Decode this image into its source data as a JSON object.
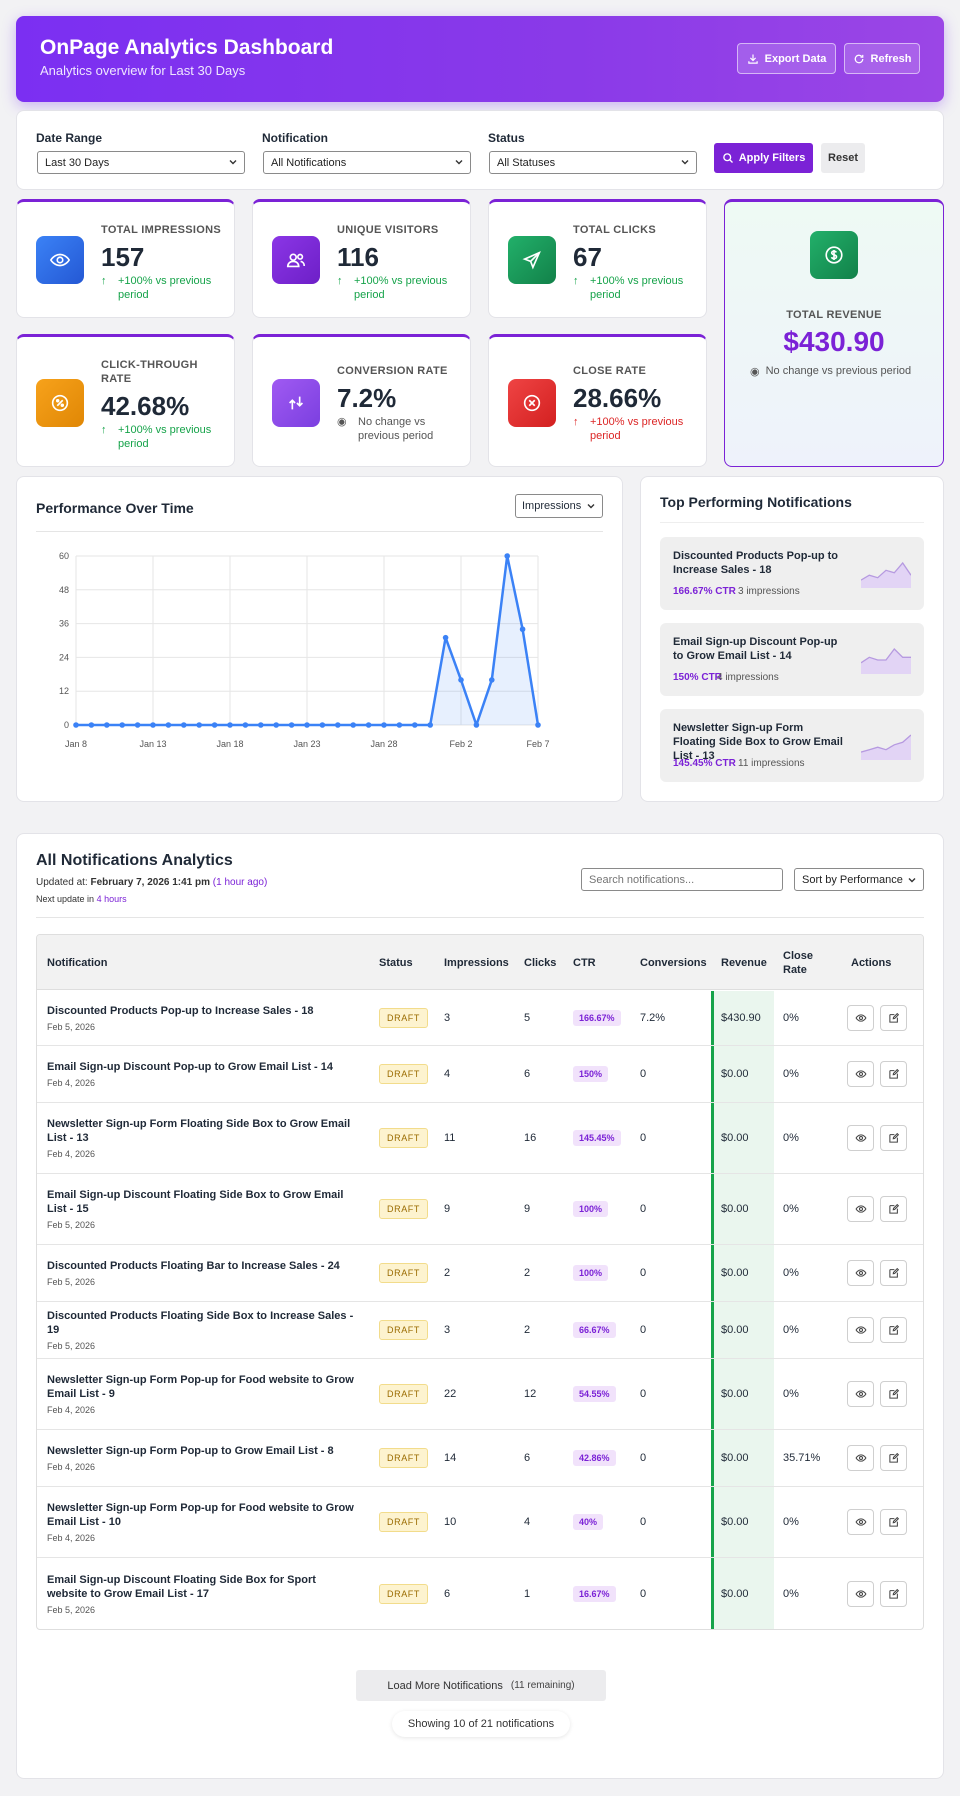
{
  "header": {
    "title": "OnPage Analytics Dashboard",
    "subtitle": "Analytics overview for Last 30 Days",
    "export_label": "Export Data",
    "refresh_label": "Refresh",
    "gradient_color": "#7b2ff2"
  },
  "filters": {
    "date_range_label": "Date Range",
    "date_range_value": "Last 30 Days",
    "notification_label": "Notification",
    "notification_value": "All Notifications",
    "status_label": "Status",
    "status_value": "All Statuses",
    "apply_label": "Apply Filters",
    "reset_label": "Reset"
  },
  "stats": {
    "impressions": {
      "label": "TOTAL IMPRESSIONS",
      "value": "157",
      "change": "+100% vs previous period",
      "icon": "eye-icon",
      "color": "#2f6fdf"
    },
    "visitors": {
      "label": "UNIQUE VISITORS",
      "value": "116",
      "change": "+100% vs previous period",
      "icon": "users-icon",
      "color": "#7b22d6"
    },
    "clicks": {
      "label": "TOTAL CLICKS",
      "value": "67",
      "change": "+100% vs previous period",
      "icon": "send-icon",
      "color": "#16a34a"
    },
    "ctr": {
      "label": "CLICK-THROUGH RATE",
      "value": "42.68%",
      "change": "+100% vs previous period",
      "icon": "percent-icon",
      "color": "#f59e0b"
    },
    "conversion": {
      "label": "CONVERSION RATE",
      "value": "7.2%",
      "change": "No change vs previous period",
      "icon": "exchange-icon",
      "color": "#8b5cf6"
    },
    "close": {
      "label": "CLOSE RATE",
      "value": "28.66%",
      "change": "+100% vs previous period",
      "icon": "x-circle-icon",
      "color": "#dc2626"
    },
    "revenue": {
      "label": "TOTAL REVENUE",
      "value": "$430.90",
      "change": "No change vs previous period",
      "icon": "dollar-icon",
      "color": "#16a34a"
    }
  },
  "chart": {
    "title": "Performance Over Time",
    "metric_value": "Impressions"
  },
  "chart_data": {
    "type": "line",
    "x": [
      "Jan 8",
      "Jan 9",
      "Jan 10",
      "Jan 11",
      "Jan 12",
      "Jan 13",
      "Jan 14",
      "Jan 15",
      "Jan 16",
      "Jan 17",
      "Jan 18",
      "Jan 19",
      "Jan 20",
      "Jan 21",
      "Jan 22",
      "Jan 23",
      "Jan 24",
      "Jan 25",
      "Jan 26",
      "Jan 27",
      "Jan 28",
      "Jan 29",
      "Jan 30",
      "Jan 31",
      "Feb 1",
      "Feb 2",
      "Feb 3",
      "Feb 4",
      "Feb 5",
      "Feb 6",
      "Feb 7"
    ],
    "x_tick_labels": [
      "Jan 8",
      "Jan 13",
      "Jan 18",
      "Jan 23",
      "Jan 28",
      "Feb 2",
      "Feb 7"
    ],
    "series": [
      {
        "values": [
          0,
          0,
          0,
          0,
          0,
          0,
          0,
          0,
          0,
          0,
          0,
          0,
          0,
          0,
          0,
          0,
          0,
          0,
          0,
          0,
          0,
          0,
          0,
          0,
          31,
          16,
          0,
          16,
          60,
          34,
          0
        ]
      }
    ],
    "y_ticks": [
      0,
      12,
      24,
      36,
      48,
      60
    ],
    "ylim": [
      0,
      60
    ],
    "grid": true,
    "color": "#3b82f6"
  },
  "top": {
    "title": "Top Performing Notifications",
    "items": [
      {
        "name": "Discounted Products Pop-up to Increase Sales - 18",
        "ctr": "166.67% CTR",
        "impressions": "3 impressions",
        "spark": [
          2,
          4,
          3,
          6,
          5,
          9,
          4
        ]
      },
      {
        "name": "Email Sign-up Discount Pop-up to Grow Email List - 14",
        "ctr": "150% CTR",
        "impressions": "4 impressions",
        "spark": [
          3,
          5,
          4,
          4,
          8,
          5,
          5
        ]
      },
      {
        "name": "Newsletter Sign-up Form Floating Side Box to Grow Email List - 13",
        "ctr": "145.45% CTR",
        "impressions": "11 impressions",
        "spark": [
          2,
          3,
          4,
          3,
          5,
          6,
          9
        ]
      }
    ]
  },
  "table": {
    "title": "All Notifications Analytics",
    "updated_prefix": "Updated at:",
    "updated_value": "February 7, 2026 1:41 pm",
    "updated_ago": "(1 hour ago)",
    "next_prefix": "Next update in",
    "next_value": "4 hours",
    "search_placeholder": "Search notifications...",
    "sort_value": "Sort by Performance",
    "columns": [
      "Notification",
      "Status",
      "Impressions",
      "Clicks",
      "CTR",
      "Conversions",
      "Revenue",
      "Close Rate",
      "Actions"
    ],
    "rows": [
      {
        "name": "Discounted Products Pop-up to Increase Sales - 18",
        "date": "Feb 5, 2026",
        "status": "DRAFT",
        "impressions": "3",
        "clicks": "5",
        "ctr": "166.67%",
        "conversions": "7.2%",
        "revenue": "$430.90",
        "close": "0%"
      },
      {
        "name": "Email Sign-up Discount Pop-up to Grow Email List - 14",
        "date": "Feb 4, 2026",
        "status": "DRAFT",
        "impressions": "4",
        "clicks": "6",
        "ctr": "150%",
        "conversions": "0",
        "revenue": "$0.00",
        "close": "0%"
      },
      {
        "name": "Newsletter Sign-up Form Floating Side Box to Grow Email List - 13",
        "date": "Feb 4, 2026",
        "status": "DRAFT",
        "impressions": "11",
        "clicks": "16",
        "ctr": "145.45%",
        "conversions": "0",
        "revenue": "$0.00",
        "close": "0%"
      },
      {
        "name": "Email Sign-up Discount Floating Side Box to Grow Email List - 15",
        "date": "Feb 5, 2026",
        "status": "DRAFT",
        "impressions": "9",
        "clicks": "9",
        "ctr": "100%",
        "conversions": "0",
        "revenue": "$0.00",
        "close": "0%"
      },
      {
        "name": "Discounted Products Floating Bar to Increase Sales - 24",
        "date": "Feb 5, 2026",
        "status": "DRAFT",
        "impressions": "2",
        "clicks": "2",
        "ctr": "100%",
        "conversions": "0",
        "revenue": "$0.00",
        "close": "0%"
      },
      {
        "name": "Discounted Products Floating Side Box to Increase Sales - 19",
        "date": "Feb 5, 2026",
        "status": "DRAFT",
        "impressions": "3",
        "clicks": "2",
        "ctr": "66.67%",
        "conversions": "0",
        "revenue": "$0.00",
        "close": "0%"
      },
      {
        "name": "Newsletter Sign-up Form Pop-up for Food website to Grow Email List - 9",
        "date": "Feb 4, 2026",
        "status": "DRAFT",
        "impressions": "22",
        "clicks": "12",
        "ctr": "54.55%",
        "conversions": "0",
        "revenue": "$0.00",
        "close": "0%"
      },
      {
        "name": "Newsletter Sign-up Form Pop-up to Grow Email List - 8",
        "date": "Feb 4, 2026",
        "status": "DRAFT",
        "impressions": "14",
        "clicks": "6",
        "ctr": "42.86%",
        "conversions": "0",
        "revenue": "$0.00",
        "close": "35.71%"
      },
      {
        "name": "Newsletter Sign-up Form Pop-up for Food website to Grow Email List - 10",
        "date": "Feb 4, 2026",
        "status": "DRAFT",
        "impressions": "10",
        "clicks": "4",
        "ctr": "40%",
        "conversions": "0",
        "revenue": "$0.00",
        "close": "0%"
      },
      {
        "name": "Email Sign-up Discount Floating Side Box for Sport website to Grow Email List - 17",
        "date": "Feb 5, 2026",
        "status": "DRAFT",
        "impressions": "6",
        "clicks": "1",
        "ctr": "16.67%",
        "conversions": "0",
        "revenue": "$0.00",
        "close": "0%"
      }
    ],
    "load_more_label": "Load More Notifications",
    "load_more_remaining": "(11 remaining)",
    "showing": "Showing 10 of 21 notifications"
  }
}
